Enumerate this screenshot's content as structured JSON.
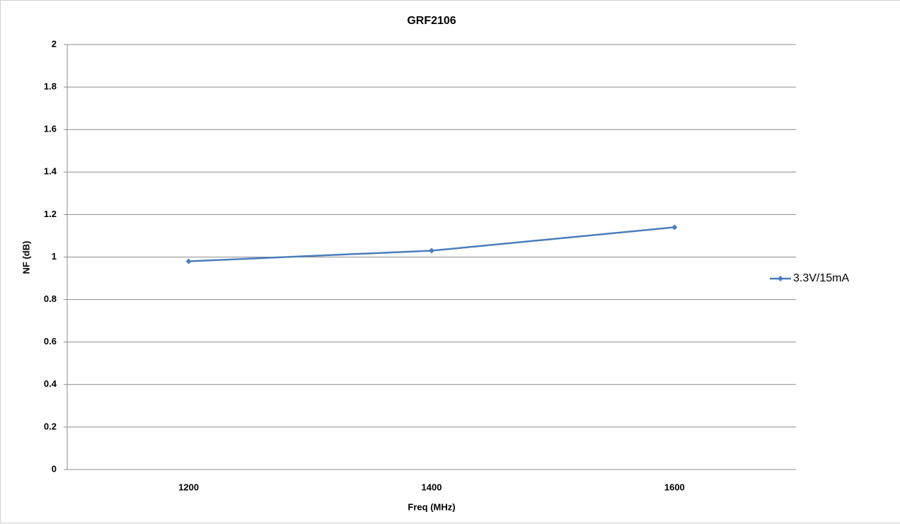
{
  "chart_data": {
    "type": "line",
    "title": "GRF2106",
    "x_label": "Freq (MHz)",
    "y_label": "NF (dB)",
    "categories": [
      "1200",
      "1400",
      "1600"
    ],
    "series": [
      {
        "name": "3.3V/15mA",
        "color": "#4a7ebb",
        "values": [
          0.98,
          1.03,
          1.14
        ]
      }
    ],
    "ylim": [
      0,
      2
    ],
    "yticks": [
      0,
      0.2,
      0.4,
      0.6,
      0.8,
      1,
      1.2,
      1.4,
      1.6,
      1.8,
      2
    ],
    "grid": true,
    "legend": "right"
  }
}
